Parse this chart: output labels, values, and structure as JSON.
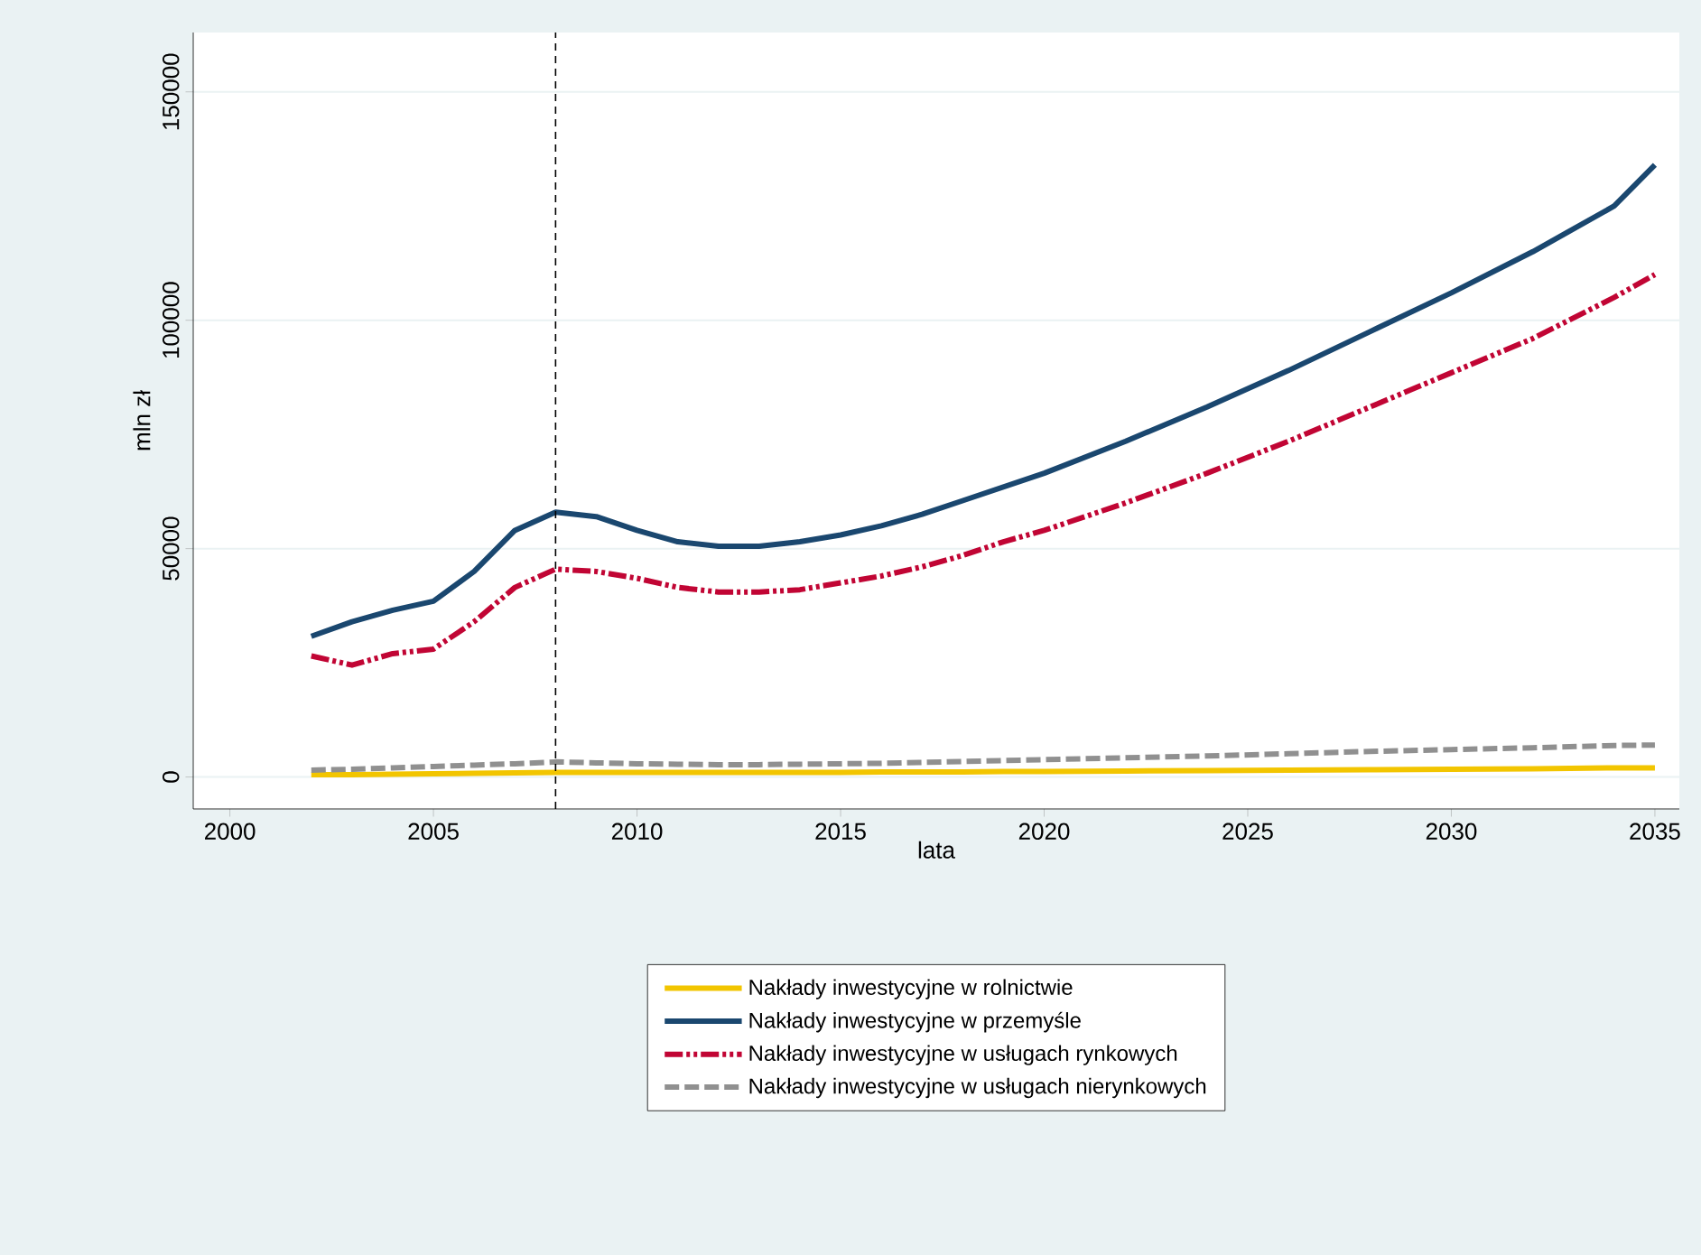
{
  "chart_data": {
    "type": "line",
    "xlabel": "lata",
    "ylabel": "mln zł",
    "x": [
      2002,
      2003,
      2004,
      2005,
      2006,
      2007,
      2008,
      2009,
      2010,
      2011,
      2012,
      2013,
      2014,
      2015,
      2016,
      2017,
      2018,
      2019,
      2020,
      2022,
      2024,
      2026,
      2028,
      2030,
      2032,
      2034,
      2035
    ],
    "series": [
      {
        "name": "Nakłady inwestycyjne w rolnictwie",
        "color": "#f2c500",
        "line_style": "solid",
        "values": [
          500,
          500,
          600,
          700,
          800,
          900,
          1000,
          1000,
          1000,
          1000,
          1000,
          1000,
          1000,
          1000,
          1100,
          1100,
          1100,
          1200,
          1200,
          1300,
          1400,
          1500,
          1600,
          1700,
          1800,
          2000,
          2000
        ]
      },
      {
        "name": "Nakłady inwestycyjne w przemyśle",
        "color": "#1a476f",
        "line_style": "solid",
        "values": [
          30800,
          34000,
          36500,
          38500,
          45000,
          54000,
          58000,
          57000,
          54000,
          51500,
          50500,
          50500,
          51500,
          53000,
          55000,
          57500,
          60500,
          63500,
          66500,
          73500,
          81000,
          89000,
          97500,
          106000,
          115000,
          125000,
          134000
        ]
      },
      {
        "name": "Nakłady inwestycyjne w usługach rynkowych",
        "color": "#c10534",
        "line_style": "dashdot",
        "values": [
          26500,
          24500,
          27000,
          28000,
          34000,
          41500,
          45500,
          45000,
          43500,
          41500,
          40500,
          40500,
          41000,
          42500,
          44000,
          46000,
          48500,
          51500,
          54000,
          60000,
          66500,
          73500,
          81000,
          88500,
          96000,
          105000,
          110000
        ]
      },
      {
        "name": "Nakłady inwestycyjne w usługach nierynkowych",
        "color": "#909090",
        "line_style": "dashed",
        "values": [
          1500,
          1700,
          2000,
          2300,
          2600,
          2900,
          3300,
          3100,
          2900,
          2800,
          2700,
          2700,
          2800,
          2900,
          3000,
          3200,
          3400,
          3600,
          3800,
          4200,
          4600,
          5100,
          5600,
          6000,
          6400,
          6900,
          7000
        ]
      }
    ],
    "xlim": [
      1999.1,
      2035.6
    ],
    "ylim": [
      -7000,
      163000
    ],
    "xticks": [
      2000,
      2005,
      2010,
      2015,
      2020,
      2025,
      2030,
      2035
    ],
    "yticks": [
      0,
      50000,
      100000,
      150000
    ],
    "grid": "y",
    "legend": "bottom",
    "ref_lines": [
      {
        "axis": "x",
        "value": 2008,
        "color": "#000000",
        "line_style": "dashed"
      }
    ]
  }
}
